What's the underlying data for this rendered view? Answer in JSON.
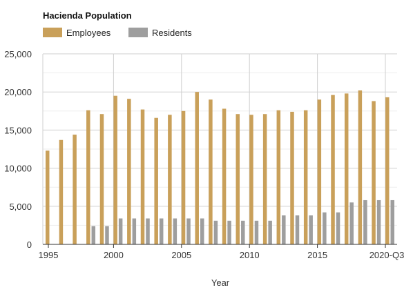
{
  "chart_data": {
    "type": "bar",
    "title": "Hacienda Population",
    "xlabel": "Year",
    "ylabel": "",
    "ylim": [
      0,
      25000
    ],
    "y_ticks": [
      "0",
      "5,000",
      "10,000",
      "15,000",
      "20,000",
      "25,000"
    ],
    "x_tick_labels": [
      "1995",
      "2000",
      "2005",
      "2010",
      "2015",
      "2020-Q3"
    ],
    "categories": [
      "1995",
      "1996",
      "1997",
      "1998",
      "1999",
      "2000",
      "2001",
      "2002",
      "2003",
      "2004",
      "2005",
      "2006",
      "2007",
      "2008",
      "2009",
      "2010",
      "2011",
      "2012",
      "2013",
      "2014",
      "2015",
      "2016",
      "2017",
      "2018",
      "2019",
      "2020-Q3"
    ],
    "series": [
      {
        "name": "Employees",
        "color": "#c9a05a",
        "values": [
          12300,
          13700,
          14400,
          17600,
          17100,
          19500,
          19100,
          17700,
          16600,
          17000,
          17500,
          20000,
          19000,
          17800,
          17100,
          17000,
          17100,
          17600,
          17400,
          17600,
          19000,
          19600,
          19800,
          20200,
          18800,
          19300
        ]
      },
      {
        "name": "Residents",
        "color": "#9e9e9e",
        "values": [
          0,
          0,
          0,
          2400,
          2400,
          3400,
          3400,
          3400,
          3400,
          3400,
          3400,
          3400,
          3100,
          3100,
          3100,
          3100,
          3100,
          3800,
          3800,
          3800,
          4200,
          4200,
          5500,
          5800,
          5800,
          5800
        ]
      }
    ],
    "grid": true,
    "legend_position": "top-left"
  }
}
